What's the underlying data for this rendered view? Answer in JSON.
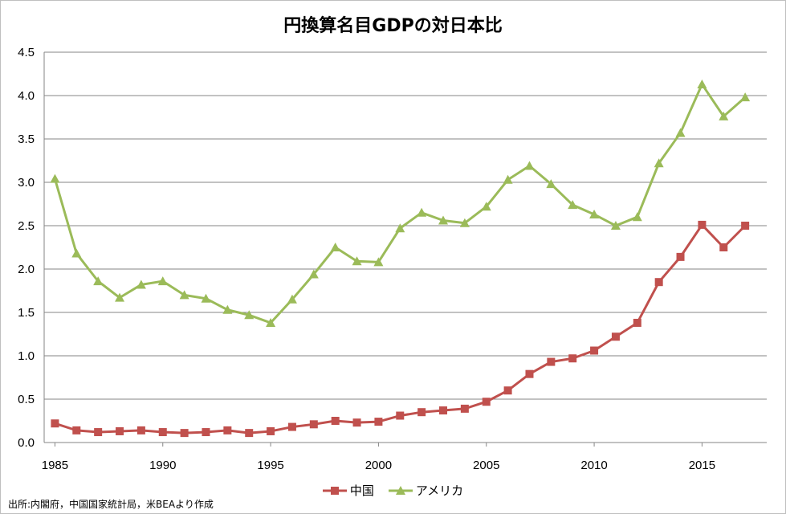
{
  "chart_data": {
    "type": "line",
    "title": "円換算名目GDPの対日本比",
    "xlabel": "",
    "ylabel": "",
    "x": [
      1985,
      1986,
      1987,
      1988,
      1989,
      1990,
      1991,
      1992,
      1993,
      1994,
      1995,
      1996,
      1997,
      1998,
      1999,
      2000,
      2001,
      2002,
      2003,
      2004,
      2005,
      2006,
      2007,
      2008,
      2009,
      2010,
      2011,
      2012,
      2013,
      2014,
      2015,
      2016,
      2017
    ],
    "xlim": [
      1984.5,
      2018
    ],
    "ylim": [
      0,
      4.5
    ],
    "yticks": [
      "0.0",
      "0.5",
      "1.0",
      "1.5",
      "2.0",
      "2.5",
      "3.0",
      "3.5",
      "4.0",
      "4.5"
    ],
    "xticks": [
      "1985",
      "1990",
      "1995",
      "2000",
      "2005",
      "2010",
      "2015"
    ],
    "grid": "horizontal",
    "legend_position": "bottom",
    "series": [
      {
        "name": "中国",
        "color": "#c0504d",
        "marker": "square",
        "values": [
          0.22,
          0.14,
          0.12,
          0.13,
          0.14,
          0.12,
          0.11,
          0.12,
          0.14,
          0.11,
          0.13,
          0.18,
          0.21,
          0.25,
          0.23,
          0.24,
          0.31,
          0.35,
          0.37,
          0.39,
          0.47,
          0.6,
          0.79,
          0.93,
          0.97,
          1.06,
          1.22,
          1.38,
          1.85,
          2.14,
          2.51,
          2.25,
          2.5
        ]
      },
      {
        "name": "アメリカ",
        "color": "#9bbb59",
        "marker": "triangle",
        "values": [
          3.04,
          2.18,
          1.86,
          1.67,
          1.82,
          1.86,
          1.7,
          1.66,
          1.53,
          1.47,
          1.38,
          1.65,
          1.94,
          2.25,
          2.09,
          2.08,
          2.47,
          2.65,
          2.56,
          2.53,
          2.72,
          3.03,
          3.19,
          2.98,
          2.74,
          2.63,
          2.5,
          2.6,
          3.22,
          3.57,
          4.13,
          3.76,
          3.98
        ]
      }
    ]
  },
  "source_note": "出所:内閣府，中国国家統計局，米BEAより作成"
}
